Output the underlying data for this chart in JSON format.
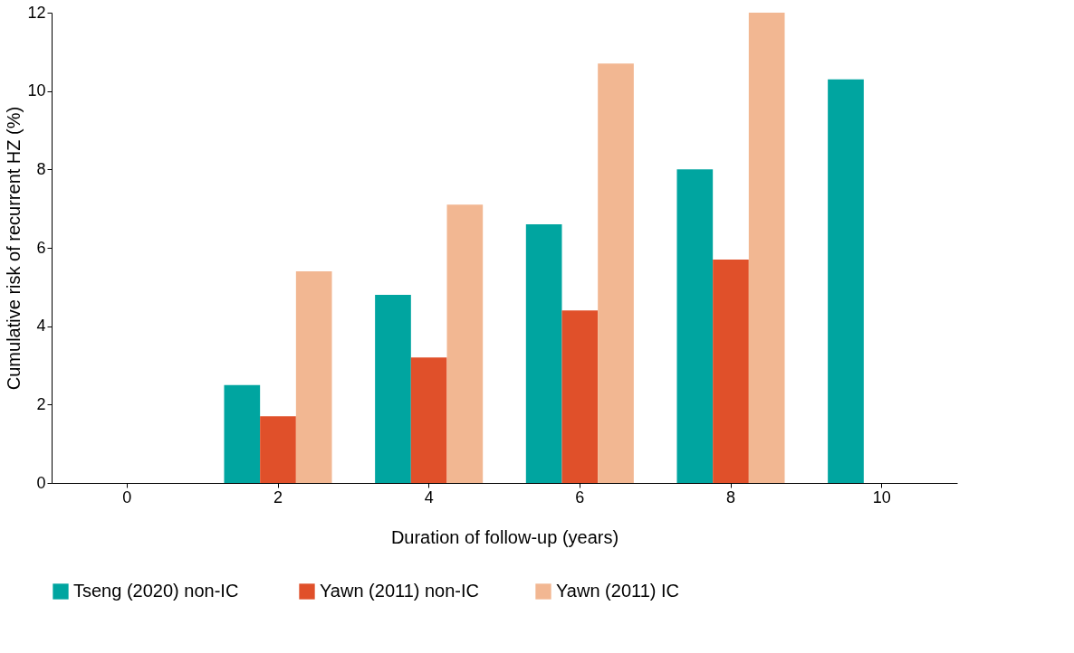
{
  "chart_data": {
    "type": "bar",
    "xlabel": "Duration of follow-up (years)",
    "ylabel": "Cumulative risk of recurrent HZ (%)",
    "categories": [
      "0",
      "2",
      "4",
      "6",
      "8",
      "10"
    ],
    "series": [
      {
        "name": "Tseng (2020)  non-IC",
        "color": "#00a5a0",
        "values": [
          null,
          2.5,
          4.8,
          6.6,
          8.0,
          10.3
        ]
      },
      {
        "name": "Yawn (2011) non-IC",
        "color": "#e0502a",
        "values": [
          null,
          1.7,
          3.2,
          4.4,
          5.7,
          null
        ]
      },
      {
        "name": "Yawn (2011) IC",
        "color": "#f2b792",
        "values": [
          null,
          5.4,
          7.1,
          10.7,
          12.0,
          null
        ]
      }
    ],
    "ylim": [
      0,
      12
    ],
    "yticks": [
      0,
      2,
      4,
      6,
      8,
      10,
      12
    ],
    "grid": false,
    "legend": "bottom"
  }
}
